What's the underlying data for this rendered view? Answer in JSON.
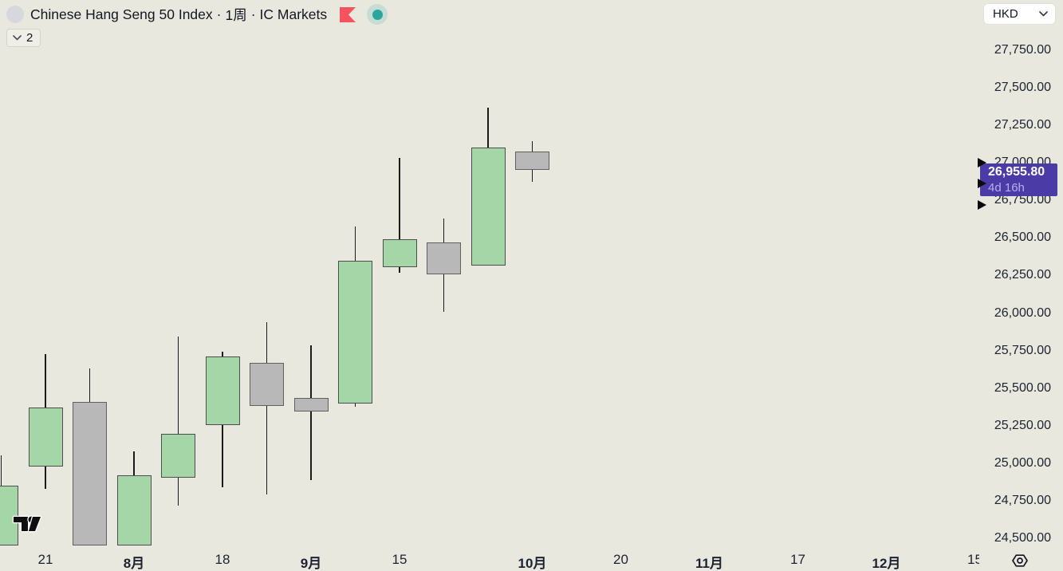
{
  "header": {
    "symbol": "Chinese Hang Seng 50 Index",
    "separator": "·",
    "interval": "1周",
    "broker": "IC Markets",
    "legend_collapse_count": "2"
  },
  "icons": {
    "symbol_logo": "symbol-logo-placeholder-circle",
    "flag": "flag-icon",
    "market_status": "market-status-dot-icon",
    "legend_chevron": "chevron-down-icon",
    "currency_chevron": "chevron-down-icon",
    "axis_settings": "gear-icon",
    "watermark": "tradingview-logo"
  },
  "currency_selector": {
    "value": "HKD"
  },
  "last_price_label": {
    "price": "26,955.80",
    "countdown": "4d 16h"
  },
  "colors": {
    "background": "#e9e8df",
    "text": "#131722",
    "up_fill": "#a5d6a7",
    "up_border": "#4d4d4d",
    "down_fill": "#b8b8b8",
    "down_border": "#5f5f5f",
    "wick": "#1b1b1b",
    "last_price_bg": "#4b3ba6",
    "countdown_text": "#b9adf0",
    "flag_red": "#f7525f",
    "status_teal": "#2aa79a"
  },
  "chart_data": {
    "type": "candlestick",
    "title": "Chinese Hang Seng 50 Index",
    "interval": "1周",
    "provider": "IC Markets",
    "currency": "HKD",
    "grid": "off",
    "legend_position": "none",
    "last_price": 26955.8,
    "countdown": "4d 16h",
    "price_axis": {
      "min": 24500,
      "max": 27750,
      "step": 250,
      "labels": [
        {
          "value": 27750,
          "label": "27,750.00"
        },
        {
          "value": 27500,
          "label": "27,500.00"
        },
        {
          "value": 27250,
          "label": "27,250.00"
        },
        {
          "value": 27000,
          "label": "27,000.00"
        },
        {
          "value": 26750,
          "label": "26,750.00"
        },
        {
          "value": 26500,
          "label": "26,500.00"
        },
        {
          "value": 26250,
          "label": "26,250.00"
        },
        {
          "value": 26000,
          "label": "26,000.00"
        },
        {
          "value": 25750,
          "label": "25,750.00"
        },
        {
          "value": 25500,
          "label": "25,500.00"
        },
        {
          "value": 25250,
          "label": "25,250.00"
        },
        {
          "value": 25000,
          "label": "25,000.00"
        },
        {
          "value": 24750,
          "label": "24,750.00"
        },
        {
          "value": 24500,
          "label": "24,500.00"
        }
      ]
    },
    "time_axis": {
      "ticks": [
        {
          "slot": 1,
          "label": "21",
          "bold": false
        },
        {
          "slot": 3,
          "label": "8月",
          "bold": true
        },
        {
          "slot": 5,
          "label": "18",
          "bold": false
        },
        {
          "slot": 7,
          "label": "9月",
          "bold": true
        },
        {
          "slot": 9,
          "label": "15",
          "bold": false
        },
        {
          "slot": 12,
          "label": "10月",
          "bold": true
        },
        {
          "slot": 14,
          "label": "20",
          "bold": false
        },
        {
          "slot": 16,
          "label": "11月",
          "bold": true
        },
        {
          "slot": 18,
          "label": "17",
          "bold": false
        },
        {
          "slot": 20,
          "label": "12月",
          "bold": true
        },
        {
          "slot": 22,
          "label": "15",
          "bold": false
        }
      ]
    },
    "candles": [
      {
        "slot": 0,
        "open": 24450,
        "high": 25050,
        "low": 24450,
        "close": 24850,
        "direction": "up",
        "partial": true
      },
      {
        "slot": 1,
        "open": 24980,
        "high": 25725,
        "low": 24830,
        "close": 25370,
        "direction": "up"
      },
      {
        "slot": 2,
        "open": 25410,
        "high": 25630,
        "low": 24450,
        "close": 24450,
        "direction": "down"
      },
      {
        "slot": 3,
        "open": 24450,
        "high": 25080,
        "low": 24450,
        "close": 24920,
        "direction": "up"
      },
      {
        "slot": 4,
        "open": 24905,
        "high": 25845,
        "low": 24720,
        "close": 25195,
        "direction": "up"
      },
      {
        "slot": 5,
        "open": 25255,
        "high": 25740,
        "low": 24840,
        "close": 25710,
        "direction": "up"
      },
      {
        "slot": 6,
        "open": 25670,
        "high": 25940,
        "low": 24790,
        "close": 25380,
        "direction": "down"
      },
      {
        "slot": 7,
        "open": 25435,
        "high": 25785,
        "low": 24890,
        "close": 25345,
        "direction": "down"
      },
      {
        "slot": 8,
        "open": 25395,
        "high": 26575,
        "low": 25375,
        "close": 26350,
        "direction": "up"
      },
      {
        "slot": 9,
        "open": 26305,
        "high": 27035,
        "low": 26270,
        "close": 26490,
        "direction": "up"
      },
      {
        "slot": 10,
        "open": 26470,
        "high": 26630,
        "low": 26010,
        "close": 26260,
        "direction": "down"
      },
      {
        "slot": 11,
        "open": 26315,
        "high": 27370,
        "low": 26315,
        "close": 27100,
        "direction": "up"
      },
      {
        "slot": 12,
        "open": 27075,
        "high": 27145,
        "low": 26875,
        "close": 26955.8,
        "direction": "down"
      }
    ],
    "price_marker_arrows_y": [
      204,
      230.5,
      257
    ]
  }
}
